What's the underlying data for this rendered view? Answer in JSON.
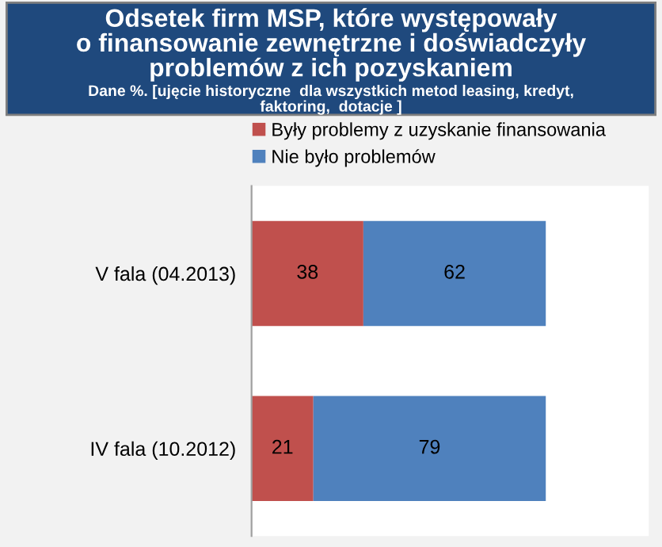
{
  "chart_data": {
    "type": "bar",
    "orientation": "horizontal",
    "stacked": true,
    "title": "Odsetek firm MSP, które występowały\no finansowanie zewnętrzne i doświadczyły\nproblemów z ich pozyskaniem",
    "subtitle": "Dane %. [ujęcie historyczne  dla wszystkich metod leasing, kredyt,\nfaktoring,  dotacje ]",
    "categories": [
      "V fala (04.2013)",
      "IV fala (10.2012)"
    ],
    "series": [
      {
        "name": "Były problemy z uzyskanie finansowania",
        "color": "#c0504d",
        "values": [
          38,
          21
        ]
      },
      {
        "name": "Nie było problemów",
        "color": "#4f81bd",
        "values": [
          62,
          79
        ]
      }
    ],
    "data_labels": true,
    "legend": "top",
    "grid": false,
    "tick_labels": "y"
  }
}
